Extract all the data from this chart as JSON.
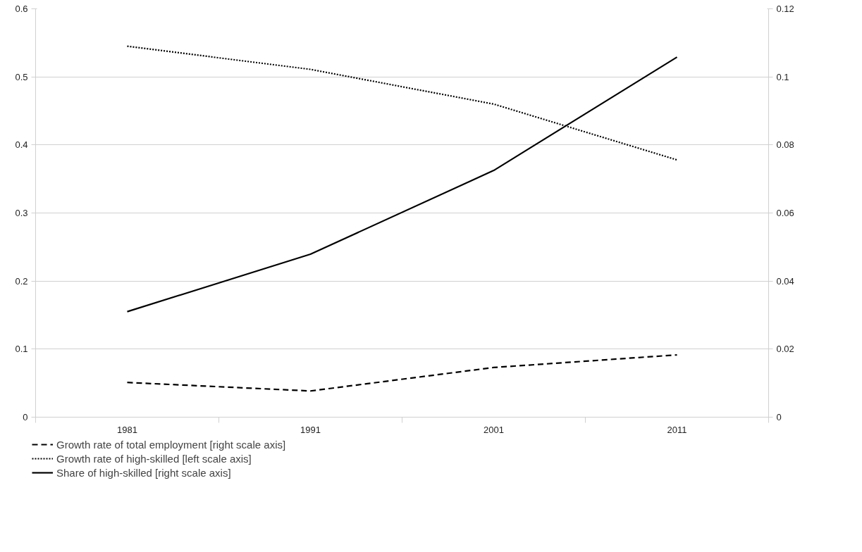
{
  "chart_data": {
    "type": "line",
    "categories": [
      "1981",
      "1991",
      "2001",
      "2011"
    ],
    "series": [
      {
        "name": "Growth rate of total employment [right scale axis]",
        "color": "#000000",
        "line_style": "dashed",
        "axis": "y2",
        "values": [
          0.0102,
          0.0077,
          0.0146,
          0.0183
        ]
      },
      {
        "name": "Growth rate of high-skilled [left scale axis]",
        "color": "#000000",
        "line_style": "dotted",
        "values": [
          0.545,
          0.511,
          0.46,
          0.378
        ]
      },
      {
        "name": "Share of high-skilled [right scale axis]",
        "color": "#000000",
        "line_style": "solid",
        "axis": "y2",
        "values": [
          0.031,
          0.0479,
          0.0725,
          0.1058
        ]
      }
    ],
    "ylim": [
      0,
      0.6
    ],
    "yticks": [
      0,
      0.1,
      0.2,
      0.3,
      0.4,
      0.5,
      0.6
    ],
    "y2lim": [
      0,
      0.12
    ],
    "y2ticks": [
      0,
      0.02,
      0.04,
      0.06,
      0.08,
      0.1,
      0.12
    ],
    "grid": "y",
    "legend": "bottom",
    "marker": "none"
  }
}
